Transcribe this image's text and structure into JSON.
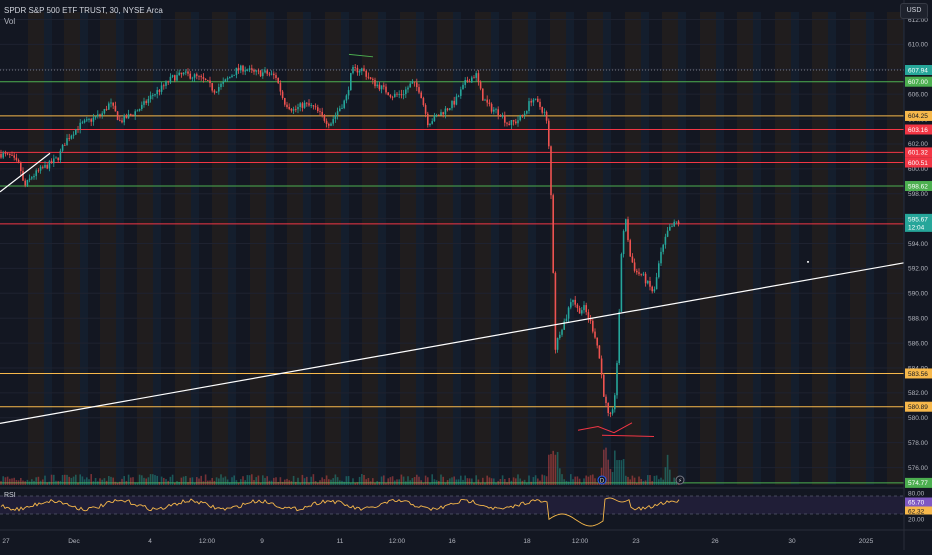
{
  "header": {
    "symbol_line": "SPDR S&P 500 ETF TRUST, 30, NYSE Arca",
    "vol_label": "Vol",
    "currency_button": "USD",
    "rsi_label": "RSI"
  },
  "colors": {
    "background": "#131722",
    "up": "#26a69a",
    "down": "#ef5350",
    "green_level": "#4caf50",
    "red_level": "#f23645",
    "orange_level": "#f7b84b",
    "trendline": "#ffffff",
    "rsi": "#f7b84b",
    "axis_text": "#b2b5be"
  },
  "chart_data": {
    "type": "candlestick",
    "title": "SPDR S&P 500 ETF TRUST, 30, NYSE Arca",
    "xlabel": "",
    "ylabel": "",
    "ylim": [
      574.6,
      612.6
    ],
    "y_ticks": [
      612.0,
      610.0,
      608.0,
      606.0,
      604.0,
      602.0,
      600.0,
      598.0,
      596.0,
      594.0,
      592.0,
      590.0,
      588.0,
      586.0,
      584.0,
      582.0,
      580.0,
      578.0,
      576.0
    ],
    "x_labels": [
      "27",
      "Dec",
      "4",
      "12:00",
      "9",
      "11",
      "12:00",
      "16",
      "18",
      "12:00",
      "23",
      "26",
      "30",
      "2025"
    ],
    "horizontal_levels": [
      {
        "price": 607.94,
        "label": "607.94",
        "style": "dotted",
        "color": "#787b86"
      },
      {
        "price": 607.0,
        "label": "607.00",
        "color": "#4caf50"
      },
      {
        "price": 604.25,
        "label": "604.25",
        "color": "#f7b84b"
      },
      {
        "price": 603.16,
        "label": "603.16",
        "color": "#f23645"
      },
      {
        "price": 601.32,
        "label": "601.32",
        "color": "#f23645"
      },
      {
        "price": 600.51,
        "label": "600.51",
        "color": "#f23645"
      },
      {
        "price": 598.62,
        "label": "598.62",
        "color": "#4caf50"
      },
      {
        "price": 595.58,
        "label": "595.58",
        "color": "#f23645"
      },
      {
        "price": 583.56,
        "label": "583.56",
        "color": "#f7b84b"
      },
      {
        "price": 580.89,
        "label": "580.89",
        "color": "#f7b84b"
      },
      {
        "price": 574.77,
        "label": "574.77",
        "color": "#4caf50"
      }
    ],
    "current_price": {
      "price": "595.67",
      "countdown": "12:04"
    },
    "trendlines": [
      {
        "from": [
          0,
          579.55
        ],
        "to": [
          904,
          592.45
        ],
        "color": "#ffffff"
      },
      {
        "from": [
          0,
          598.15
        ],
        "to": [
          50,
          601.25
        ],
        "color": "#ffffff"
      }
    ],
    "annotations": [
      {
        "type": "stroke",
        "points": [
          [
            349,
            609.2
          ],
          [
            373,
            609.0
          ]
        ],
        "color": "#4caf50"
      },
      {
        "type": "stroke",
        "points": [
          [
            578,
            579.0
          ],
          [
            598,
            579.3
          ],
          [
            614,
            578.8
          ],
          [
            632,
            579.6
          ]
        ],
        "color": "#f23645"
      },
      {
        "type": "stroke",
        "points": [
          [
            602,
            578.6
          ],
          [
            654,
            578.5
          ]
        ],
        "color": "#f23645"
      }
    ],
    "price_path": [
      [
        0,
        601.2
      ],
      [
        10,
        601.0
      ],
      [
        20,
        600.2
      ],
      [
        24,
        598.5
      ],
      [
        32,
        599.4
      ],
      [
        42,
        600.0
      ],
      [
        52,
        600.5
      ],
      [
        58,
        600.9
      ],
      [
        66,
        602.3
      ],
      [
        78,
        603.4
      ],
      [
        90,
        603.9
      ],
      [
        102,
        604.4
      ],
      [
        110,
        605.3
      ],
      [
        120,
        603.8
      ],
      [
        132,
        604.4
      ],
      [
        142,
        605.0
      ],
      [
        152,
        605.9
      ],
      [
        162,
        606.5
      ],
      [
        172,
        607.3
      ],
      [
        184,
        607.6
      ],
      [
        196,
        607.4
      ],
      [
        206,
        607.0
      ],
      [
        214,
        606.3
      ],
      [
        224,
        606.9
      ],
      [
        236,
        607.9
      ],
      [
        244,
        608.1
      ],
      [
        254,
        607.7
      ],
      [
        266,
        607.7
      ],
      [
        276,
        607.4
      ],
      [
        284,
        605.4
      ],
      [
        294,
        604.7
      ],
      [
        304,
        605.2
      ],
      [
        314,
        604.9
      ],
      [
        322,
        604.2
      ],
      [
        330,
        603.6
      ],
      [
        338,
        604.7
      ],
      [
        346,
        605.6
      ],
      [
        352,
        607.9
      ],
      [
        362,
        608.0
      ],
      [
        372,
        607.0
      ],
      [
        382,
        606.5
      ],
      [
        392,
        605.9
      ],
      [
        402,
        606.0
      ],
      [
        412,
        606.9
      ],
      [
        420,
        606.3
      ],
      [
        428,
        603.7
      ],
      [
        438,
        604.3
      ],
      [
        448,
        604.9
      ],
      [
        456,
        605.5
      ],
      [
        466,
        607.0
      ],
      [
        476,
        607.6
      ],
      [
        482,
        605.8
      ],
      [
        490,
        604.9
      ],
      [
        500,
        604.5
      ],
      [
        508,
        603.6
      ],
      [
        516,
        603.8
      ],
      [
        524,
        604.4
      ],
      [
        532,
        605.7
      ],
      [
        540,
        605.0
      ],
      [
        546,
        604.3
      ],
      [
        549,
        601.5
      ],
      [
        552,
        596.0
      ],
      [
        555,
        585.5
      ],
      [
        560,
        587.0
      ],
      [
        566,
        588.0
      ],
      [
        572,
        589.8
      ],
      [
        578,
        588.6
      ],
      [
        584,
        588.8
      ],
      [
        590,
        587.8
      ],
      [
        596,
        586.4
      ],
      [
        600,
        584.5
      ],
      [
        604,
        581.8
      ],
      [
        608,
        580.2
      ],
      [
        612,
        580.0
      ],
      [
        616,
        582.8
      ],
      [
        619,
        587.8
      ],
      [
        622,
        594.6
      ],
      [
        626,
        595.8
      ],
      [
        630,
        593.0
      ],
      [
        636,
        591.7
      ],
      [
        642,
        591.5
      ],
      [
        648,
        590.7
      ],
      [
        654,
        590.0
      ],
      [
        660,
        592.9
      ],
      [
        668,
        595.0
      ],
      [
        676,
        595.7
      ],
      [
        680,
        595.67
      ]
    ],
    "rsi": {
      "name": "RSI",
      "levels": [
        {
          "value": "80.00",
          "label": "80.00"
        },
        {
          "value": "65.70",
          "label": "65.70"
        },
        {
          "value": "62.32",
          "label": "62.32"
        },
        {
          "value": "20.00",
          "label": "20.00"
        }
      ]
    }
  }
}
